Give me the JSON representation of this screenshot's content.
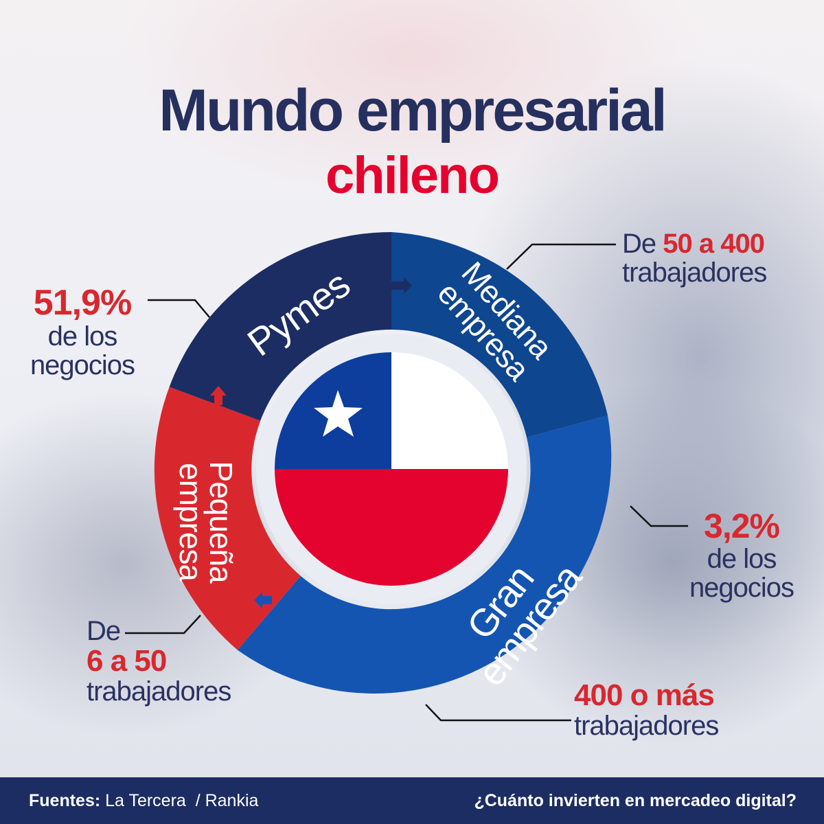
{
  "title": "Mundo empresarial",
  "subtitle": "chileno",
  "segments": {
    "pymes": "Pymes",
    "mediana": [
      "Mediana",
      "empresa"
    ],
    "gran": [
      "Gran",
      "empresa"
    ],
    "pequena": [
      "Pequeña",
      "empresa"
    ]
  },
  "callouts": {
    "mediana_workers": {
      "pre": "De ",
      "range": "50 a 400",
      "line2": "trabajadores"
    },
    "pymes_share": {
      "pct": "51,9%",
      "line2": "de los",
      "line3": "negocios"
    },
    "gran_share": {
      "pct": "3,2%",
      "line2": "de los",
      "line3": "negocios"
    },
    "pequena_workers": {
      "line1": "De",
      "range": "6 a 50",
      "line3": "trabajadores"
    },
    "gran_workers": {
      "range": "400 o más",
      "line2": "trabajadores"
    }
  },
  "footer": {
    "sources_label": "Fuentes:",
    "sources": "La Tercera  / Rankia",
    "question": "¿Cuánto invierten en mercadeo digital?"
  },
  "colors": {
    "navy": "#1c2d63",
    "title_navy": "#26305e",
    "mediana_blue": "#0e468f",
    "gran_blue": "#1455b1",
    "pequena_red": "#d8282e",
    "flag_red": "#e4032e",
    "flag_blue": "#0d3e9e"
  }
}
